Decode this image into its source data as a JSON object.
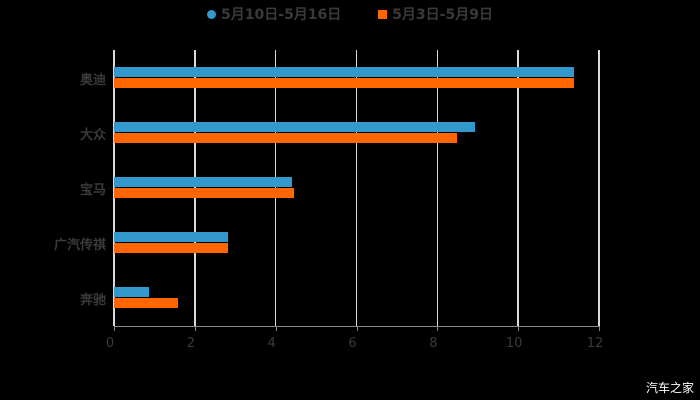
{
  "legend": {
    "series1": "5月10日-5月16日",
    "series2": "5月3日-5月9日"
  },
  "colors": {
    "series1": "#3399cc",
    "series2": "#ff6600"
  },
  "watermark": "汽车之家",
  "axis": {
    "ticks": [
      "0",
      "2",
      "4",
      "6",
      "8",
      "10",
      "12"
    ]
  },
  "categories": [
    "奥迪",
    "大众",
    "宝马",
    "广汽传祺",
    "奔驰"
  ],
  "chart_data": {
    "type": "bar",
    "orientation": "horizontal",
    "title": "",
    "xlabel": "",
    "ylabel": "",
    "categories": [
      "奥迪",
      "大众",
      "宝马",
      "广汽传祺",
      "奔驰"
    ],
    "series": [
      {
        "name": "5月10日-5月16日",
        "color": "#3399cc",
        "values": [
          11.38,
          8.93,
          4.41,
          2.82,
          0.87
        ]
      },
      {
        "name": "5月3日-5月9日",
        "color": "#ff6600",
        "values": [
          11.38,
          8.49,
          4.46,
          2.82,
          1.58
        ]
      }
    ],
    "xlim": [
      0,
      12
    ],
    "xticks": [
      0,
      2,
      4,
      6,
      8,
      10,
      12
    ],
    "grid": true,
    "legend_position": "top"
  }
}
